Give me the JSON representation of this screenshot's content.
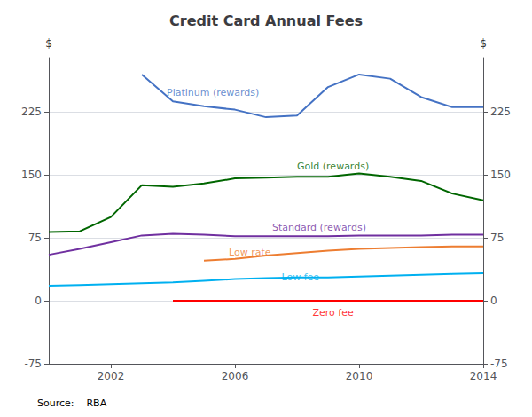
{
  "chart_data": {
    "type": "line",
    "title": "Credit Card Annual Fees",
    "source": "Source:    RBA",
    "ylabel": "$",
    "y2label": "$",
    "xlim": [
      2000,
      2014
    ],
    "xticks": [
      2002,
      2006,
      2010,
      2014
    ],
    "ylim": [
      -75,
      290
    ],
    "yticks": [
      -75,
      0,
      75,
      150,
      225
    ],
    "y2lim": [
      -75,
      290
    ],
    "y2ticks": [
      -75,
      0,
      75,
      150,
      225
    ],
    "grid": true,
    "series": [
      {
        "name": "Platinum (rewards)",
        "color": "#4472c4",
        "x": [
          2003,
          2004,
          2005,
          2006,
          2007,
          2008,
          2009,
          2010,
          2011,
          2012,
          2013,
          2014
        ],
        "values": [
          270,
          238,
          232,
          228,
          219,
          221,
          255,
          270,
          265,
          243,
          231,
          231
        ]
      },
      {
        "name": "Gold (rewards)",
        "color": "#006600",
        "x": [
          2000,
          2001,
          2002,
          2003,
          2004,
          2005,
          2006,
          2007,
          2008,
          2009,
          2010,
          2011,
          2012,
          2013,
          2014
        ],
        "values": [
          82,
          83,
          100,
          138,
          136,
          140,
          146,
          147,
          148,
          148,
          152,
          148,
          143,
          128,
          120
        ]
      },
      {
        "name": "Standard (rewards)",
        "color": "#7030a0",
        "x": [
          2000,
          2001,
          2002,
          2003,
          2004,
          2005,
          2006,
          2007,
          2008,
          2009,
          2010,
          2011,
          2012,
          2013,
          2014
        ],
        "values": [
          55,
          62,
          70,
          78,
          80,
          79,
          77,
          77,
          77,
          77,
          78,
          78,
          78,
          79,
          79
        ]
      },
      {
        "name": "Low rate",
        "color": "#ed7d31",
        "x": [
          2005,
          2006,
          2007,
          2008,
          2009,
          2010,
          2011,
          2012,
          2013,
          2014
        ],
        "values": [
          48,
          50,
          54,
          57,
          60,
          62,
          63,
          64,
          65,
          65
        ]
      },
      {
        "name": "Low fee",
        "color": "#00b0f0",
        "x": [
          2000,
          2001,
          2002,
          2003,
          2004,
          2005,
          2006,
          2007,
          2008,
          2009,
          2010,
          2011,
          2012,
          2013,
          2014
        ],
        "values": [
          18,
          19,
          20,
          21,
          22,
          24,
          26,
          27,
          28,
          28,
          29,
          30,
          31,
          32,
          33
        ]
      },
      {
        "name": "Zero fee",
        "color": "#ff0000",
        "x": [
          2004,
          2014
        ],
        "values": [
          0,
          0
        ]
      }
    ],
    "annotations": [
      {
        "text": "Platinum (rewards)",
        "x": 2003.8,
        "y": 242
      },
      {
        "text": "Gold (rewards)",
        "x": 2008.0,
        "y": 155
      },
      {
        "text": "Standard (rewards)",
        "x": 2007.2,
        "y": 82
      },
      {
        "text": "Low rate",
        "x": 2005.8,
        "y": 52
      },
      {
        "text": "Low fee",
        "x": 2007.5,
        "y": 22
      },
      {
        "text": "Zero fee",
        "x": 2008.5,
        "y": -20
      }
    ]
  }
}
